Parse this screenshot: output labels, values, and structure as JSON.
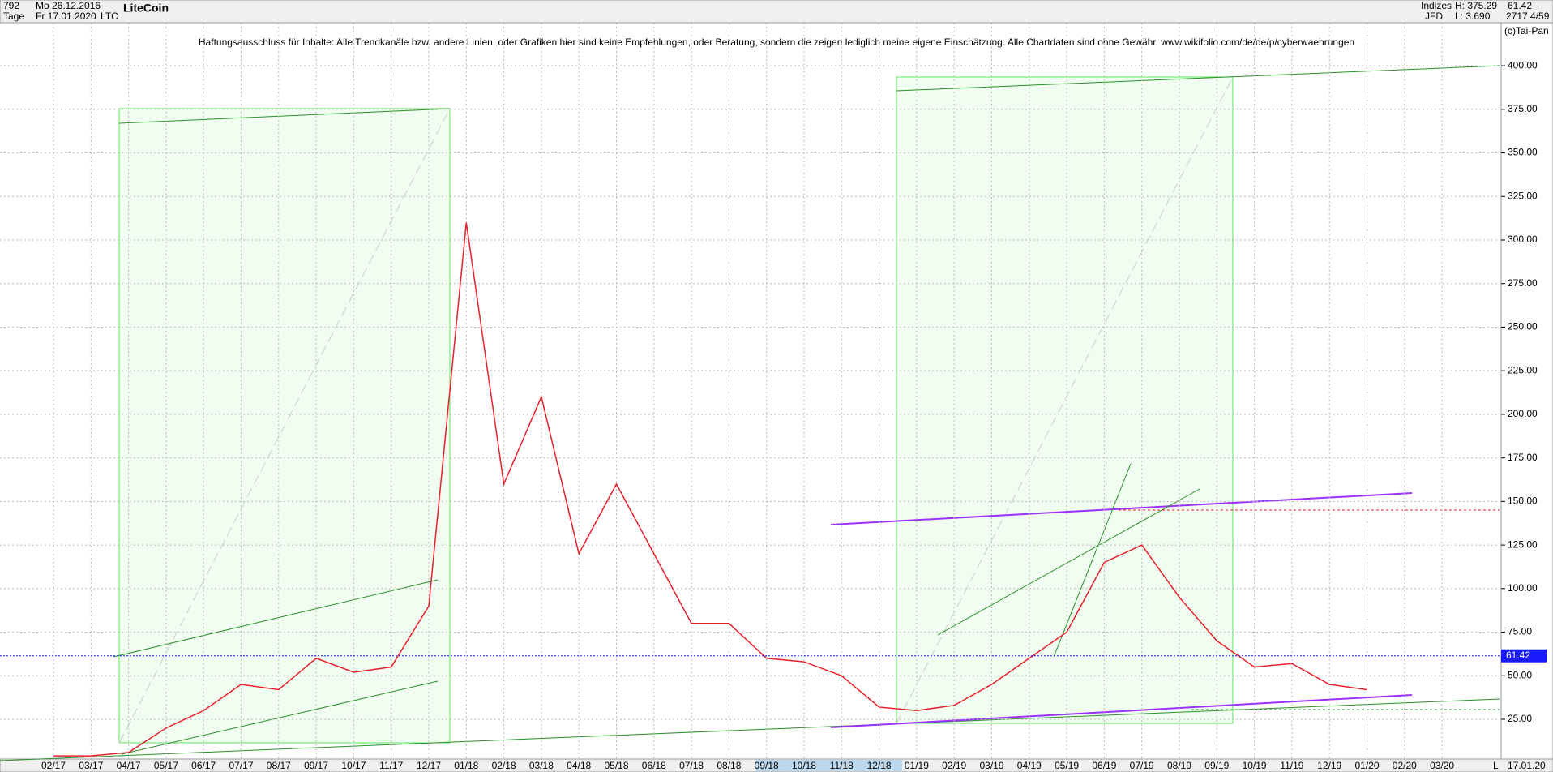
{
  "chart_data": {
    "type": "line",
    "title": "LiteCoin",
    "header": {
      "count": "792",
      "start": "Mo 26.12.2016",
      "period": "Tage",
      "end": "Fr 17.01.2020",
      "symbol": "LTC",
      "group": "Indizes",
      "source": "JFD",
      "high": "H: 375.29",
      "low": "L: 3.690",
      "last": "61.42",
      "info": "2717.4/59",
      "copyright": "(c)Tai-Pan"
    },
    "disclaimer": "Haftungsausschluss für Inhalte: Alle Trendkanäle bzw. andere Linien, oder Grafiken hier sind keine Empfehlungen, oder Beratung, sondern die zeigen lediglich meine eigene Einschätzung. Alle Chartdaten sind ohne Gewähr.  www.wikifolio.com/de/de/p/cyberwaehrungen",
    "date_label": "17.01.20",
    "scale_mode": "L",
    "categories": [
      "02/17",
      "03/17",
      "04/17",
      "05/17",
      "06/17",
      "07/17",
      "08/17",
      "09/17",
      "10/17",
      "11/17",
      "12/17",
      "01/18",
      "02/18",
      "03/18",
      "04/18",
      "05/18",
      "06/18",
      "07/18",
      "08/18",
      "09/18",
      "10/18",
      "11/18",
      "12/18",
      "01/19",
      "02/19",
      "03/19",
      "04/19",
      "05/19",
      "06/19",
      "07/19",
      "08/19",
      "09/19",
      "10/19",
      "11/19",
      "12/19",
      "01/20",
      "02/20",
      "03/20"
    ],
    "values": [
      4,
      4,
      6,
      20,
      30,
      45,
      42,
      60,
      52,
      55,
      90,
      310,
      160,
      210,
      120,
      160,
      120,
      80,
      80,
      60,
      58,
      50,
      32,
      30,
      33,
      45,
      60,
      75,
      115,
      125,
      95,
      70,
      55,
      57,
      45,
      42,
      null,
      null
    ],
    "color": "#e8202a",
    "last_price": {
      "value": 61.42,
      "label": "61.42",
      "color": "#1a1aff"
    },
    "ylim": [
      2.2,
      424.7
    ],
    "yticks": [
      {
        "value": 25,
        "label": "25.00"
      },
      {
        "value": 50,
        "label": "50.00"
      },
      {
        "value": 75,
        "label": "75.00"
      },
      {
        "value": 100,
        "label": "100.00"
      },
      {
        "value": 125,
        "label": "125.00"
      },
      {
        "value": 150,
        "label": "150.00"
      },
      {
        "value": 175,
        "label": "175.00"
      },
      {
        "value": 200,
        "label": "200.00"
      },
      {
        "value": 225,
        "label": "225.00"
      },
      {
        "value": 250,
        "label": "250.00"
      },
      {
        "value": 275,
        "label": "275.00"
      },
      {
        "value": 300,
        "label": "300.00"
      },
      {
        "value": 325,
        "label": "325.00"
      },
      {
        "value": 350,
        "label": "350.00"
      },
      {
        "value": 375,
        "label": "375.00"
      },
      {
        "value": 400,
        "label": "400.00"
      }
    ],
    "grid": true
  }
}
